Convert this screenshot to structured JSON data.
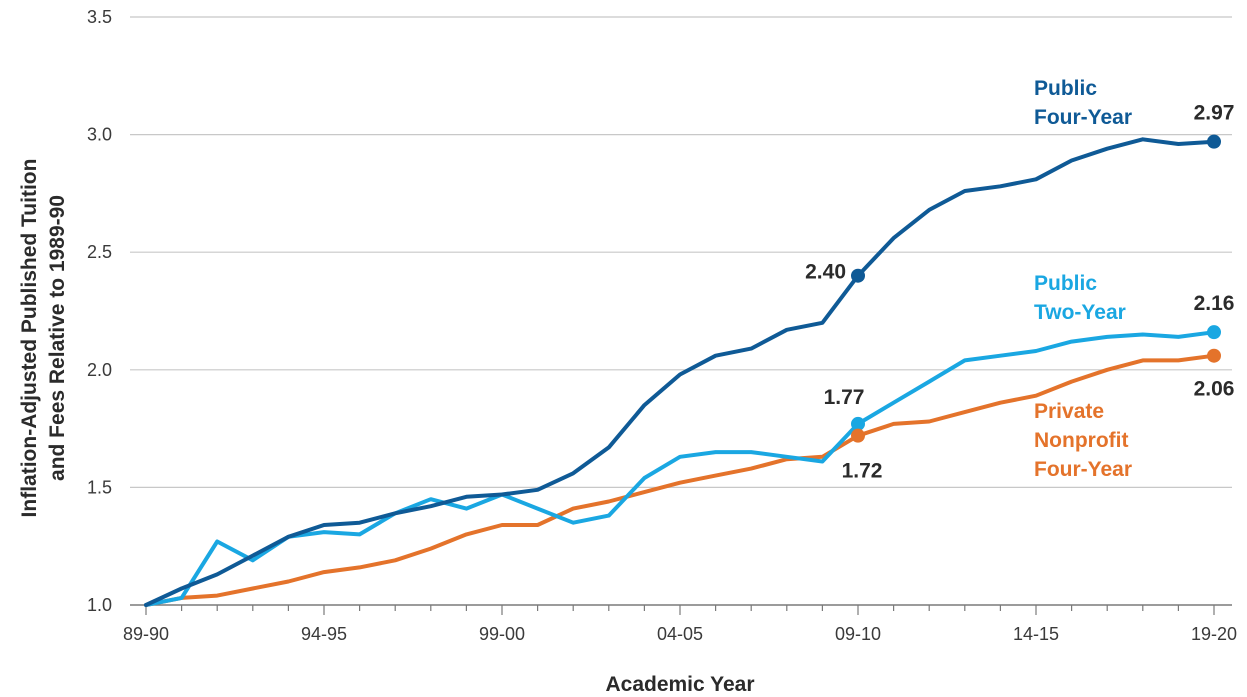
{
  "chart_data": {
    "type": "line",
    "ylabel_line1": "Inflation-Adjusted Published Tuition",
    "ylabel_line2": "and Fees Relative to 1989-90",
    "xlabel": "Academic Year",
    "ylim": [
      1.0,
      3.5
    ],
    "yticks": [
      "1.0",
      "1.5",
      "2.0",
      "2.5",
      "3.0",
      "3.5"
    ],
    "xtick_labels": [
      "89-90",
      "94-95",
      "99-00",
      "04-05",
      "09-10",
      "14-15",
      "19-20"
    ],
    "grid": "horizontal",
    "x": [
      "89-90",
      "90-91",
      "91-92",
      "92-93",
      "93-94",
      "94-95",
      "95-96",
      "96-97",
      "97-98",
      "98-99",
      "99-00",
      "00-01",
      "01-02",
      "02-03",
      "03-04",
      "04-05",
      "05-06",
      "06-07",
      "07-08",
      "08-09",
      "09-10",
      "10-11",
      "11-12",
      "12-13",
      "13-14",
      "14-15",
      "15-16",
      "16-17",
      "17-18",
      "18-19",
      "19-20"
    ],
    "series": [
      {
        "name_lines": [
          "Public",
          "Four-Year"
        ],
        "color": "#0f5a96",
        "values": [
          1.0,
          1.07,
          1.13,
          1.21,
          1.29,
          1.34,
          1.35,
          1.39,
          1.42,
          1.46,
          1.47,
          1.49,
          1.56,
          1.67,
          1.85,
          1.98,
          2.06,
          2.09,
          2.17,
          2.2,
          2.4,
          2.56,
          2.68,
          2.76,
          2.78,
          2.81,
          2.89,
          2.94,
          2.98,
          2.96,
          2.97
        ],
        "annotations": [
          {
            "x_index": 20,
            "text": "2.40"
          },
          {
            "x_index": 30,
            "text": "2.97"
          }
        ]
      },
      {
        "name_lines": [
          "Public",
          "Two-Year"
        ],
        "color": "#1aa7e2",
        "values": [
          1.0,
          1.03,
          1.27,
          1.19,
          1.29,
          1.31,
          1.3,
          1.39,
          1.45,
          1.41,
          1.47,
          1.41,
          1.35,
          1.38,
          1.54,
          1.63,
          1.65,
          1.65,
          1.63,
          1.61,
          1.77,
          1.86,
          1.95,
          2.04,
          2.06,
          2.08,
          2.12,
          2.14,
          2.15,
          2.14,
          2.16
        ],
        "annotations": [
          {
            "x_index": 20,
            "text": "1.77"
          },
          {
            "x_index": 30,
            "text": "2.16"
          }
        ]
      },
      {
        "name_lines": [
          "Private",
          "Nonprofit",
          "Four-Year"
        ],
        "color": "#e4732b",
        "values": [
          1.0,
          1.03,
          1.04,
          1.07,
          1.1,
          1.14,
          1.16,
          1.19,
          1.24,
          1.3,
          1.34,
          1.34,
          1.41,
          1.44,
          1.48,
          1.52,
          1.55,
          1.58,
          1.62,
          1.63,
          1.72,
          1.77,
          1.78,
          1.82,
          1.86,
          1.89,
          1.95,
          2.0,
          2.04,
          2.04,
          2.06
        ],
        "annotations": [
          {
            "x_index": 20,
            "text": "1.72"
          },
          {
            "x_index": 30,
            "text": "2.06"
          }
        ]
      }
    ]
  }
}
